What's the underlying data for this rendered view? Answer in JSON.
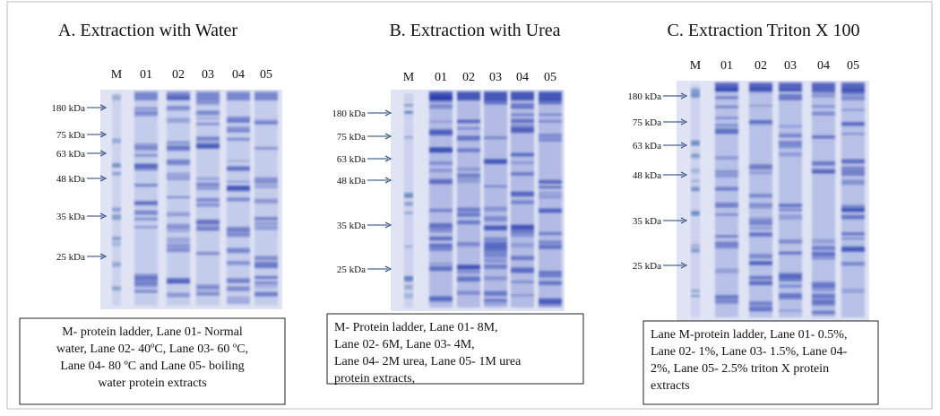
{
  "panels": [
    {
      "title": "A. Extraction with Water",
      "lanes": [
        "M",
        "01",
        "02",
        "03",
        "04",
        "05"
      ],
      "markers": [
        "180 kDa",
        "75 kDa",
        "63 kDa",
        "48 kDa",
        "35 kDa",
        "25 kDa"
      ],
      "caption": [
        "M- protein ladder, Lane 01- Normal",
        "water, Lane 02-  40ºC, Lane 03- 60 ºC,",
        "Lane 04- 80 ºC and Lane 05- boiling",
        "water protein extracts"
      ]
    },
    {
      "title": "B. Extraction with Urea",
      "lanes": [
        "M",
        "01",
        "02",
        "03",
        "04",
        "05"
      ],
      "markers": [
        "180 kDa",
        "75 kDa",
        "63 kDa",
        "48 kDa",
        "35 kDa",
        "25 kDa"
      ],
      "caption": [
        "M- Protein ladder, Lane 01- 8M,",
        "Lane 02- 6M, Lane 03- 4M,",
        "Lane 04- 2M urea, Lane 05- 1M urea",
        "protein extracts,"
      ]
    },
    {
      "title": "C. Extraction Triton X 100",
      "lanes": [
        "M",
        "01",
        "02",
        "03",
        "04",
        "05"
      ],
      "markers": [
        "180 kDa",
        "75 kDa",
        "63 kDa",
        "48 kDa",
        "35 kDa",
        "25 kDa"
      ],
      "caption": [
        "Lane M-protein ladder, Lane 01- 0.5%,",
        "Lane 02- 1%, Lane 03- 1.5%, Lane 04-",
        "2%, Lane 05- 2.5% triton X protein",
        "extracts"
      ]
    }
  ]
}
